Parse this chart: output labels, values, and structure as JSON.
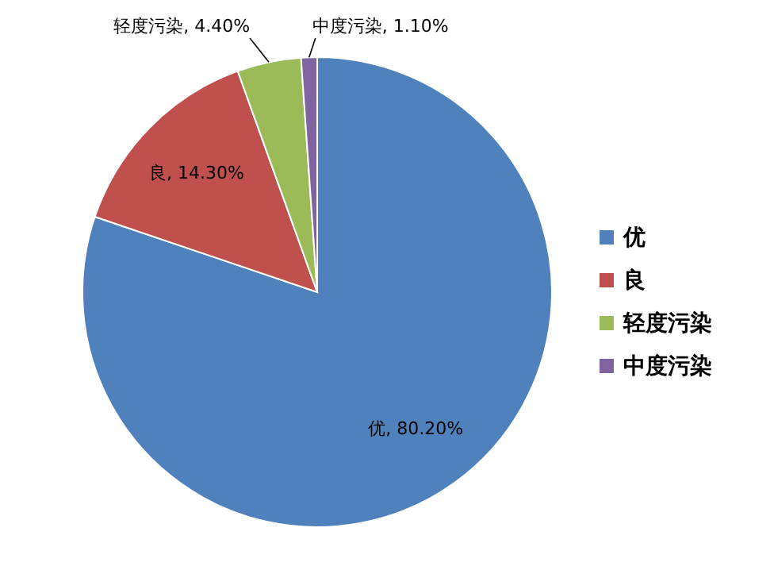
{
  "chart_data": {
    "type": "pie",
    "categories": [
      "优",
      "良",
      "轻度污染",
      "中度污染"
    ],
    "values": [
      80.2,
      14.3,
      4.4,
      1.1
    ],
    "colors": [
      "#4f81bd",
      "#c0504d",
      "#9bbb59",
      "#8064a2"
    ],
    "value_labels": [
      "优, 80.20%",
      "良, 14.30%",
      "轻度污染, 4.40%",
      "中度污染, 1.10%"
    ],
    "legend": "right"
  }
}
